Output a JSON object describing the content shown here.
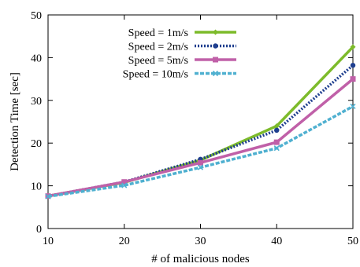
{
  "chart_data": {
    "type": "line",
    "title": "",
    "xlabel": "# of malicious nodes",
    "ylabel": "Detection Time [sec]",
    "xlim": [
      10,
      50
    ],
    "ylim": [
      0,
      50
    ],
    "xticks": [
      10,
      20,
      30,
      40,
      50
    ],
    "yticks": [
      0,
      10,
      20,
      30,
      40,
      50
    ],
    "legend_position": "top-left",
    "grid": false,
    "x": [
      10,
      20,
      30,
      40,
      50
    ],
    "series": [
      {
        "name": "Speed =  1m/s",
        "values": [
          7.6,
          10.8,
          16.0,
          24.0,
          42.5
        ],
        "color": "#7dbb2b",
        "marker": "diamond",
        "dash": ""
      },
      {
        "name": "Speed =  2m/s",
        "values": [
          7.6,
          10.9,
          16.2,
          23.0,
          38.2
        ],
        "color": "#1f3f8f",
        "marker": "circle",
        "dash": "2,2"
      },
      {
        "name": "Speed =  5m/s",
        "values": [
          7.6,
          10.9,
          15.4,
          20.2,
          35.0
        ],
        "color": "#c060a8",
        "marker": "square",
        "dash": ""
      },
      {
        "name": "Speed = 10m/s",
        "values": [
          7.5,
          10.1,
          14.3,
          18.8,
          28.6
        ],
        "color": "#4fb0d0",
        "marker": "x",
        "dash": "5,2"
      }
    ]
  }
}
